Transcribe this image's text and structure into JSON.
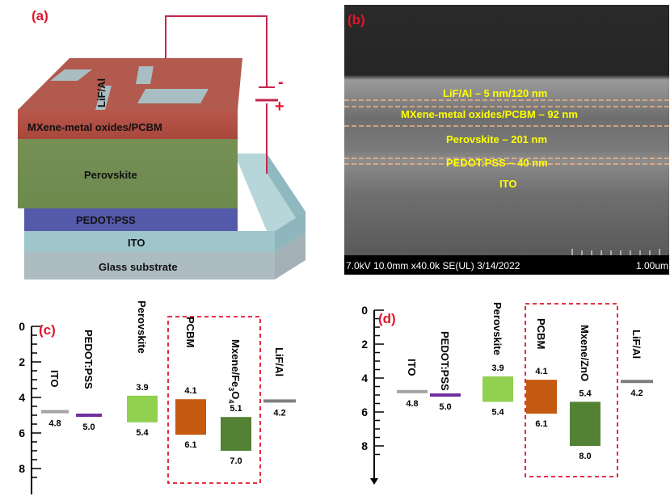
{
  "panel_a": {
    "tag": "(a)",
    "layers": {
      "top": "MXene-metal oxides/PCBM",
      "perovskite": "Perovskite",
      "pedot": "PEDOT:PSS",
      "ito": "ITO",
      "glass": "Glass substrate",
      "electrode": "LiF/Al"
    },
    "minus": "-",
    "plus": "+",
    "colors": {
      "top": "#b8574b",
      "perovskite": "#6f8f4e",
      "pedot": "#5157a8",
      "ito": "#9cc4c9",
      "glass": "#a9b8bd",
      "wire": "#c4264b"
    }
  },
  "panel_b": {
    "tag": "(b)",
    "labels": {
      "lif": "LiF/Al – 5 nm/120 nm",
      "mxene": "MXene-metal oxides/PCBM – 92 nm",
      "perovskite": "Perovskite – 201 nm",
      "pedot": "PEDOT:PSS – 40 nm",
      "ito": "ITO"
    },
    "footer": "7.0kV 10.0mm x40.0k SE(UL) 3/14/2022",
    "scale": "1.00um"
  },
  "panel_c": {
    "tag": "(c)",
    "yticks": [
      "0",
      "2",
      "4",
      "6",
      "8"
    ],
    "ylim": [
      0,
      9
    ],
    "levels": [
      {
        "name": "ITO",
        "type": "line",
        "value": 4.8,
        "label": "4.8",
        "color": "#a3a3a3"
      },
      {
        "name": "PEDOT:PSS",
        "type": "line",
        "value": 5.0,
        "label": "5.0",
        "color": "#7030a0"
      },
      {
        "name": "Perovskite",
        "type": "box",
        "top": 3.9,
        "bottom": 5.4,
        "top_label": "3.9",
        "bottom_label": "5.4",
        "color": "#92d050"
      },
      {
        "name": "PCBM",
        "type": "box",
        "top": 4.1,
        "bottom": 6.1,
        "top_label": "4.1",
        "bottom_label": "6.1",
        "color": "#c55a11"
      },
      {
        "name": "Mxene/Fe3O4",
        "type": "box",
        "top": 5.1,
        "bottom": 7.0,
        "top_label": "5.1",
        "bottom_label": "7.0",
        "color": "#548235"
      },
      {
        "name": "LiF/Al",
        "type": "line",
        "value": 4.2,
        "label": "4.2",
        "color": "#7f7f7f"
      }
    ]
  },
  "panel_d": {
    "tag": "(d)",
    "yticks": [
      "0",
      "2",
      "4",
      "6",
      "8"
    ],
    "ylim": [
      0,
      9
    ],
    "levels": [
      {
        "name": "ITO",
        "type": "line",
        "value": 4.8,
        "label": "4.8",
        "color": "#a3a3a3"
      },
      {
        "name": "PEDOT:PSS",
        "type": "line",
        "value": 5.0,
        "label": "5.0",
        "color": "#7030a0"
      },
      {
        "name": "Perovskite",
        "type": "box",
        "top": 3.9,
        "bottom": 5.4,
        "top_label": "3.9",
        "bottom_label": "5.4",
        "color": "#92d050"
      },
      {
        "name": "PCBM",
        "type": "box",
        "top": 4.1,
        "bottom": 6.1,
        "top_label": "4.1",
        "bottom_label": "6.1",
        "color": "#c55a11"
      },
      {
        "name": "Mxene/ZnO",
        "type": "box",
        "top": 5.4,
        "bottom": 8.0,
        "top_label": "5.4",
        "bottom_label": "8.0",
        "color": "#548235"
      },
      {
        "name": "LiF/Al",
        "type": "line",
        "value": 4.2,
        "label": "4.2",
        "color": "#7f7f7f"
      }
    ]
  }
}
